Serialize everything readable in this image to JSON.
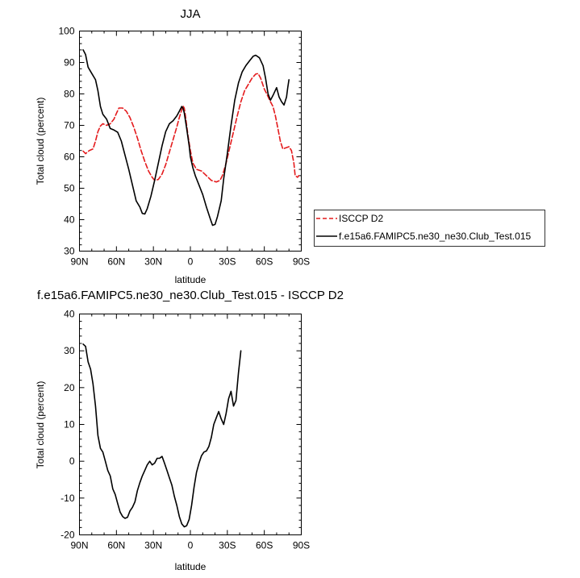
{
  "chart_data": [
    {
      "type": "line",
      "title": "JJA",
      "xlabel": "latitude",
      "ylabel": "Total cloud (percent)",
      "xlim": [
        90,
        -90
      ],
      "ylim": [
        30,
        100
      ],
      "x_ticks": [
        {
          "value": 90,
          "label": "90N"
        },
        {
          "value": 60,
          "label": "60N"
        },
        {
          "value": 30,
          "label": "30N"
        },
        {
          "value": 0,
          "label": "0"
        },
        {
          "value": -30,
          "label": "30S"
        },
        {
          "value": -60,
          "label": "60S"
        },
        {
          "value": -90,
          "label": "90S"
        }
      ],
      "y_ticks": [
        30,
        40,
        50,
        60,
        70,
        80,
        90,
        100
      ],
      "legend_position": "right",
      "series": [
        {
          "name": "ISCCP D2",
          "color": "#e41a1c",
          "dash": "dashed",
          "points": [
            [
              87,
              61.8
            ],
            [
              85,
              61
            ],
            [
              82,
              62
            ],
            [
              79,
              62.5
            ],
            [
              77,
              65
            ],
            [
              75,
              68
            ],
            [
              73,
              69.8
            ],
            [
              71,
              70.5
            ],
            [
              68,
              70
            ],
            [
              65,
              70.5
            ],
            [
              62,
              72
            ],
            [
              60,
              73.8
            ],
            [
              58,
              75.5
            ],
            [
              55,
              75.5
            ],
            [
              52,
              74.5
            ],
            [
              49,
              72.5
            ],
            [
              46,
              69.5
            ],
            [
              43,
              66
            ],
            [
              40,
              62
            ],
            [
              37,
              58.5
            ],
            [
              34,
              55.5
            ],
            [
              31,
              53.5
            ],
            [
              29,
              52.5
            ],
            [
              26,
              52.8
            ],
            [
              23,
              54.5
            ],
            [
              20,
              57.5
            ],
            [
              17,
              61.5
            ],
            [
              14,
              65.5
            ],
            [
              11,
              69.5
            ],
            [
              9,
              72.5
            ],
            [
              7,
              75
            ],
            [
              6,
              76.2
            ],
            [
              5,
              75.5
            ],
            [
              4,
              73
            ],
            [
              2,
              67
            ],
            [
              0,
              62
            ],
            [
              -2,
              58
            ],
            [
              -5,
              56
            ],
            [
              -9,
              55.5
            ],
            [
              -13,
              54
            ],
            [
              -17,
              52.5
            ],
            [
              -21,
              52
            ],
            [
              -24,
              52.5
            ],
            [
              -26,
              54
            ],
            [
              -29,
              58
            ],
            [
              -32,
              63
            ],
            [
              -35,
              68
            ],
            [
              -38,
              73
            ],
            [
              -41,
              77.5
            ],
            [
              -44,
              81
            ],
            [
              -47,
              83
            ],
            [
              -50,
              85
            ],
            [
              -53,
              86.3
            ],
            [
              -55,
              86.5
            ],
            [
              -57,
              85
            ],
            [
              -60,
              81.5
            ],
            [
              -62,
              80
            ],
            [
              -65,
              77.5
            ],
            [
              -67,
              76
            ],
            [
              -69,
              73
            ],
            [
              -71,
              69
            ],
            [
              -73,
              65
            ],
            [
              -75,
              62.5
            ],
            [
              -77,
              62.8
            ],
            [
              -80,
              63.2
            ],
            [
              -82,
              62
            ],
            [
              -84,
              58
            ],
            [
              -85,
              54
            ],
            [
              -87,
              53.5
            ],
            [
              -88,
              54
            ]
          ]
        },
        {
          "name": "f.e15a6.FAMIPC5.ne30_ne30.Club_Test.015",
          "color": "#000000",
          "dash": "solid",
          "points": [
            [
              87,
              94
            ],
            [
              85,
              92.5
            ],
            [
              83,
              88.5
            ],
            [
              80,
              86.5
            ],
            [
              77,
              84.5
            ],
            [
              75,
              81
            ],
            [
              73,
              76
            ],
            [
              71,
              73.5
            ],
            [
              68,
              72
            ],
            [
              65,
              69
            ],
            [
              62,
              68.5
            ],
            [
              59,
              67.8
            ],
            [
              56,
              65
            ],
            [
              53,
              60.5
            ],
            [
              50,
              56
            ],
            [
              47,
              51
            ],
            [
              44,
              46
            ],
            [
              41,
              44
            ],
            [
              39,
              42
            ],
            [
              37,
              41.8
            ],
            [
              35,
              43.5
            ],
            [
              32,
              47.5
            ],
            [
              29,
              52.5
            ],
            [
              26,
              58
            ],
            [
              23,
              63.5
            ],
            [
              20,
              68
            ],
            [
              17,
              70.5
            ],
            [
              14,
              71.5
            ],
            [
              11,
              73
            ],
            [
              9,
              74.5
            ],
            [
              7,
              76
            ],
            [
              6,
              75.5
            ],
            [
              5,
              74
            ],
            [
              3,
              69
            ],
            [
              1,
              63.5
            ],
            [
              0,
              60
            ],
            [
              -2,
              56.5
            ],
            [
              -4,
              54
            ],
            [
              -7,
              51
            ],
            [
              -10,
              48
            ],
            [
              -13,
              44
            ],
            [
              -16,
              40.5
            ],
            [
              -18,
              38.2
            ],
            [
              -20,
              38.5
            ],
            [
              -22,
              41
            ],
            [
              -25,
              46
            ],
            [
              -27,
              53
            ],
            [
              -30,
              61
            ],
            [
              -33,
              70
            ],
            [
              -36,
              78
            ],
            [
              -39,
              83.5
            ],
            [
              -42,
              87
            ],
            [
              -45,
              89
            ],
            [
              -48,
              90.5
            ],
            [
              -51,
              92
            ],
            [
              -53,
              92.3
            ],
            [
              -56,
              91.5
            ],
            [
              -59,
              89
            ],
            [
              -61,
              85
            ],
            [
              -63,
              80
            ],
            [
              -65,
              78
            ],
            [
              -67,
              79.5
            ],
            [
              -70,
              82
            ],
            [
              -72,
              79
            ],
            [
              -74,
              77.5
            ],
            [
              -76,
              76.5
            ],
            [
              -78,
              79
            ],
            [
              -79,
              82
            ],
            [
              -80,
              84.5
            ]
          ]
        }
      ]
    },
    {
      "type": "line",
      "title": "f.e15a6.FAMIPC5.ne30_ne30.Club_Test.015 - ISCCP D2",
      "xlabel": "latitude",
      "ylabel": "Total cloud (percent)",
      "xlim": [
        90,
        -90
      ],
      "ylim": [
        -20,
        40
      ],
      "x_ticks": [
        {
          "value": 90,
          "label": "90N"
        },
        {
          "value": 60,
          "label": "60N"
        },
        {
          "value": 30,
          "label": "30N"
        },
        {
          "value": 0,
          "label": "0"
        },
        {
          "value": -30,
          "label": "30S"
        },
        {
          "value": -60,
          "label": "60S"
        },
        {
          "value": -90,
          "label": "90S"
        }
      ],
      "y_ticks": [
        -20,
        -10,
        0,
        10,
        20,
        30,
        40
      ],
      "series": [
        {
          "color": "#000000",
          "dash": "solid",
          "points": [
            [
              87,
              31.8
            ],
            [
              85,
              31.2
            ],
            [
              83,
              27
            ],
            [
              81,
              25
            ],
            [
              79,
              21
            ],
            [
              77,
              15
            ],
            [
              75,
              7
            ],
            [
              73,
              3.5
            ],
            [
              71,
              2.5
            ],
            [
              69,
              0
            ],
            [
              67,
              -2.5
            ],
            [
              65,
              -4
            ],
            [
              63,
              -7.5
            ],
            [
              61,
              -9
            ],
            [
              59,
              -11.5
            ],
            [
              57,
              -13.8
            ],
            [
              55,
              -15
            ],
            [
              53,
              -15.5
            ],
            [
              51,
              -15.2
            ],
            [
              49,
              -13.5
            ],
            [
              47,
              -12.5
            ],
            [
              45,
              -11
            ],
            [
              43,
              -8
            ],
            [
              41,
              -5.8
            ],
            [
              39,
              -4
            ],
            [
              37,
              -2.5
            ],
            [
              35,
              -1
            ],
            [
              33,
              0
            ],
            [
              31,
              -1
            ],
            [
              29,
              -0.5
            ],
            [
              27,
              0.8
            ],
            [
              25,
              0.8
            ],
            [
              23,
              1.3
            ],
            [
              21,
              -0.5
            ],
            [
              19,
              -2.5
            ],
            [
              17,
              -4.5
            ],
            [
              15,
              -6.5
            ],
            [
              13,
              -9.5
            ],
            [
              11,
              -12
            ],
            [
              9,
              -15
            ],
            [
              7,
              -17
            ],
            [
              5,
              -17.8
            ],
            [
              3,
              -17.5
            ],
            [
              1,
              -15.8
            ],
            [
              -1,
              -12
            ],
            [
              -3,
              -7
            ],
            [
              -5,
              -3
            ],
            [
              -7,
              -0.5
            ],
            [
              -9,
              1.5
            ],
            [
              -11,
              2.5
            ],
            [
              -13,
              2.8
            ],
            [
              -15,
              4
            ],
            [
              -17,
              6.5
            ],
            [
              -19,
              10
            ],
            [
              -21,
              11.8
            ],
            [
              -23,
              13.5
            ],
            [
              -25,
              11.5
            ],
            [
              -27,
              10
            ],
            [
              -29,
              13
            ],
            [
              -31,
              17
            ],
            [
              -33,
              19
            ],
            [
              -35,
              15
            ],
            [
              -37,
              16.5
            ],
            [
              -39,
              24
            ],
            [
              -41,
              30
            ]
          ]
        }
      ]
    }
  ]
}
